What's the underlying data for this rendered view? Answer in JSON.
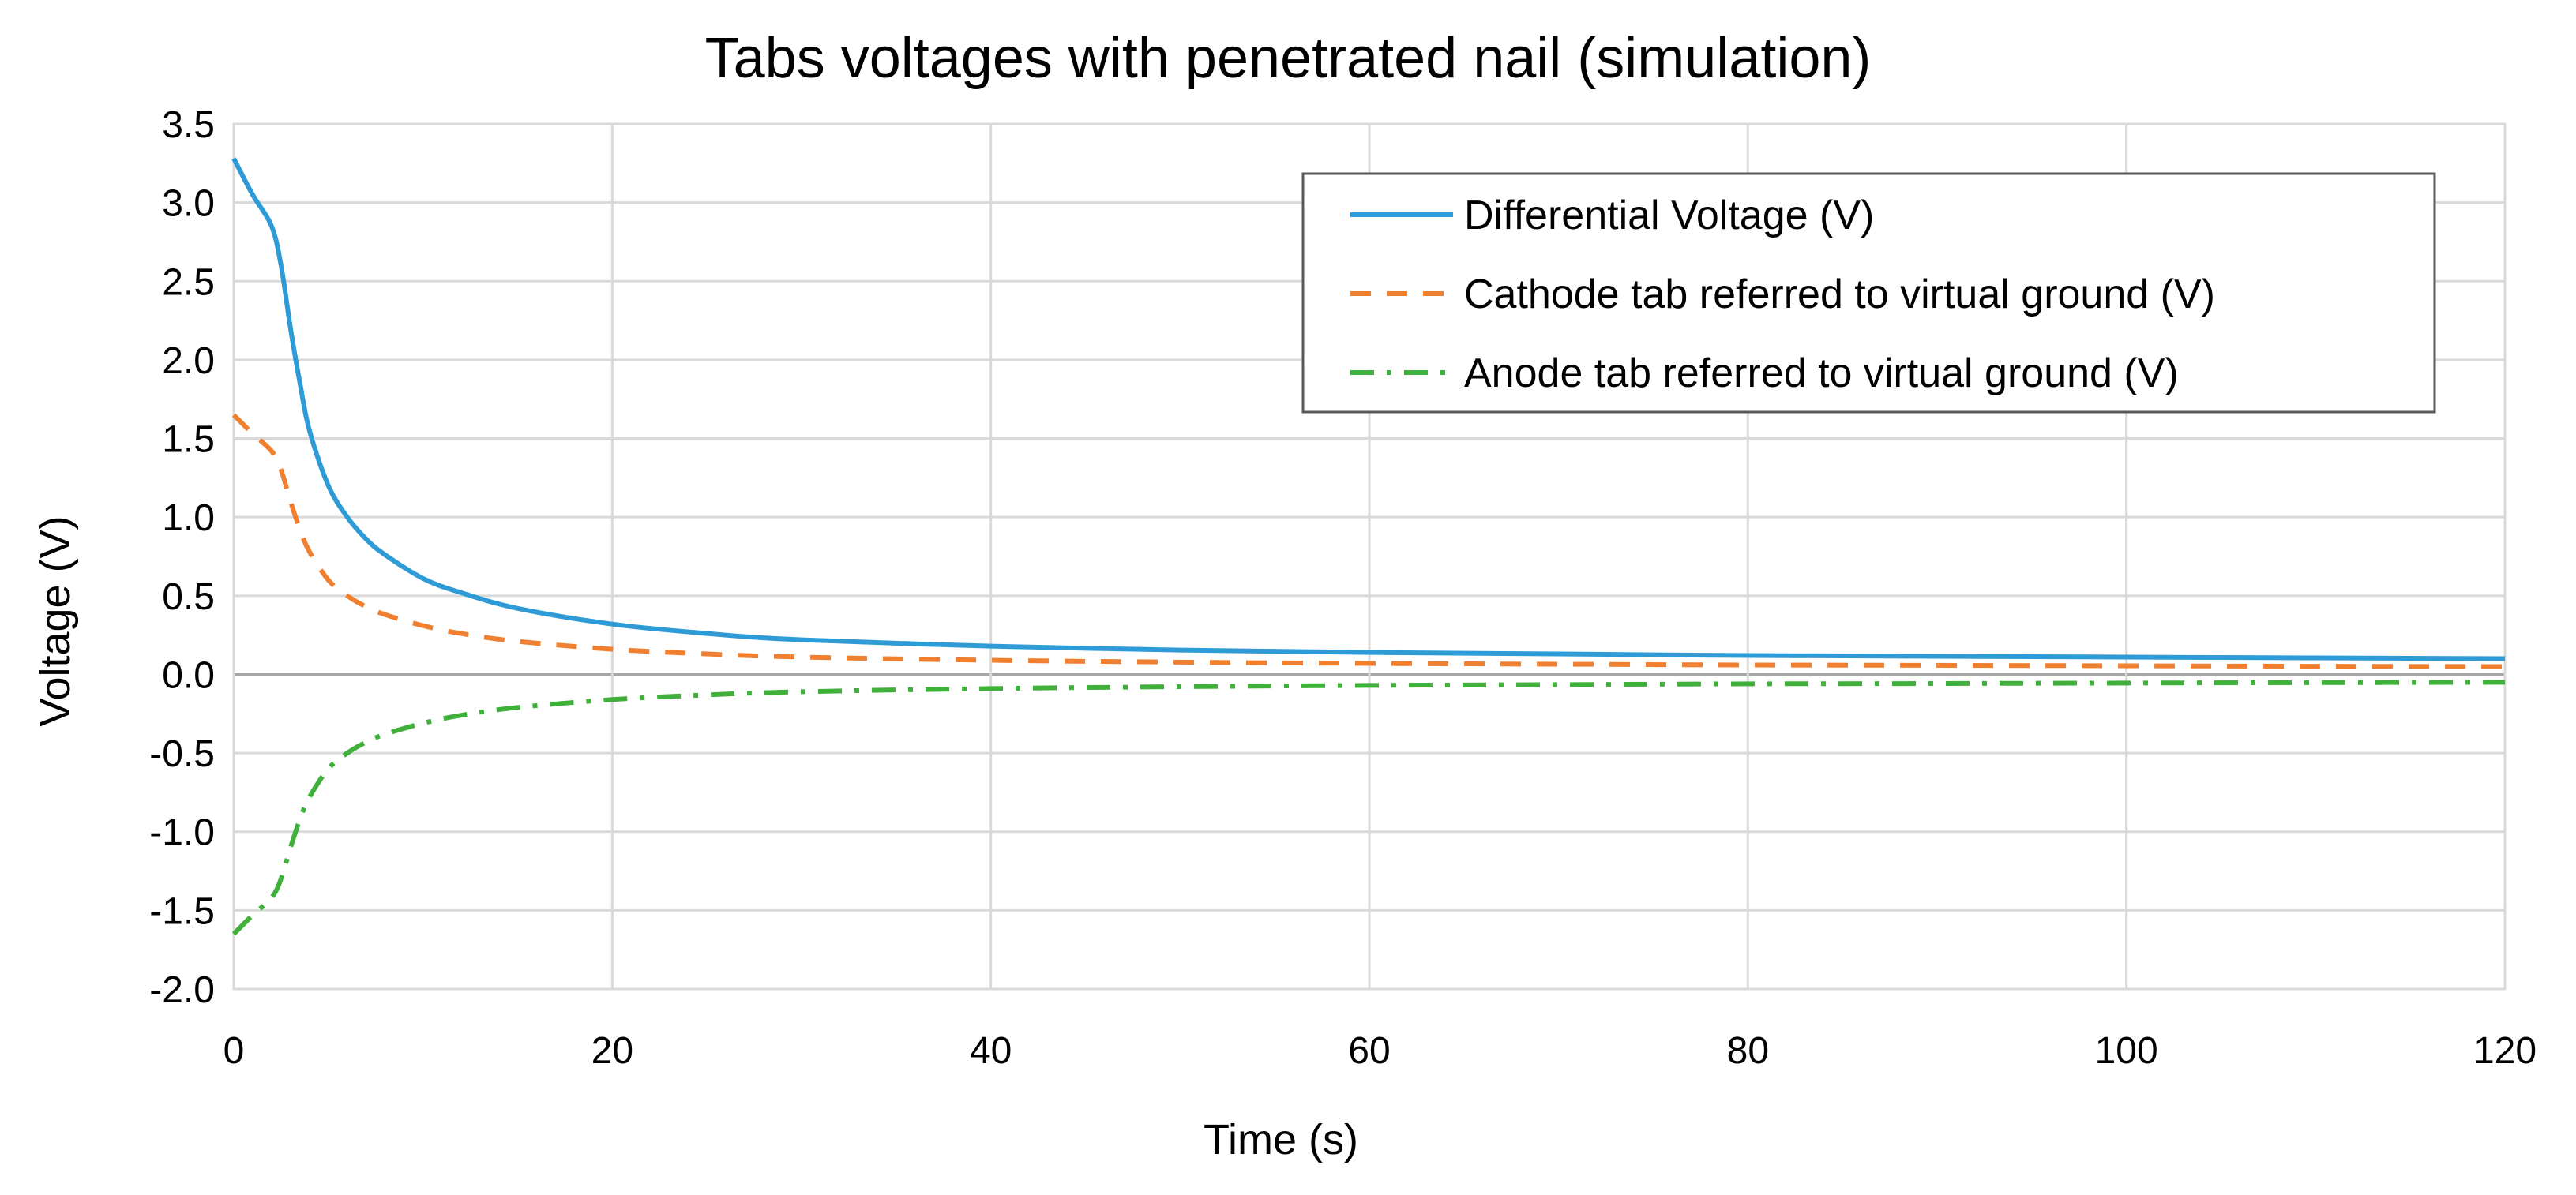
{
  "chart_data": {
    "type": "line",
    "title": "Tabs voltages with penetrated nail (simulation)",
    "xlabel": "Time (s)",
    "ylabel": "Voltage (V)",
    "xlim": [
      0,
      120
    ],
    "ylim": [
      -2.0,
      3.5
    ],
    "xticks": [
      0,
      20,
      40,
      60,
      80,
      100,
      120
    ],
    "yticks": [
      -2.0,
      -1.5,
      -1.0,
      -0.5,
      0.0,
      0.5,
      1.0,
      1.5,
      2.0,
      2.5,
      3.0,
      3.5
    ],
    "grid": true,
    "legend_position": "top-right",
    "series": [
      {
        "name": "Differential Voltage (V)",
        "color": "#2e9bd7",
        "dash": "solid",
        "x": [
          0,
          1,
          2,
          2.5,
          3,
          3.5,
          4,
          5,
          6,
          7,
          8,
          10,
          12,
          15,
          20,
          25,
          30,
          40,
          50,
          60,
          70,
          80,
          90,
          100,
          110,
          120
        ],
        "y": [
          3.28,
          3.05,
          2.85,
          2.6,
          2.2,
          1.85,
          1.55,
          1.2,
          1.0,
          0.86,
          0.76,
          0.61,
          0.52,
          0.42,
          0.32,
          0.26,
          0.22,
          0.18,
          0.155,
          0.14,
          0.13,
          0.12,
          0.115,
          0.11,
          0.105,
          0.1
        ]
      },
      {
        "name": "Cathode tab referred to virtual ground (V)",
        "color": "#f07f2f",
        "dash": "dashed",
        "x": [
          0,
          1,
          2,
          2.5,
          3,
          3.5,
          4,
          5,
          6,
          7,
          8,
          10,
          12,
          15,
          20,
          25,
          30,
          40,
          50,
          60,
          70,
          80,
          90,
          100,
          110,
          120
        ],
        "y": [
          1.65,
          1.53,
          1.42,
          1.3,
          1.1,
          0.92,
          0.78,
          0.6,
          0.5,
          0.43,
          0.38,
          0.31,
          0.26,
          0.21,
          0.16,
          0.13,
          0.11,
          0.09,
          0.078,
          0.07,
          0.065,
          0.06,
          0.058,
          0.055,
          0.052,
          0.05
        ]
      },
      {
        "name": "Anode tab referred to virtual ground (V)",
        "color": "#3fb13a",
        "dash": "dashdot",
        "x": [
          0,
          1,
          2,
          2.5,
          3,
          3.5,
          4,
          5,
          6,
          7,
          8,
          10,
          12,
          15,
          20,
          25,
          30,
          40,
          50,
          60,
          70,
          80,
          90,
          100,
          110,
          120
        ],
        "y": [
          -1.65,
          -1.53,
          -1.42,
          -1.3,
          -1.1,
          -0.92,
          -0.78,
          -0.6,
          -0.5,
          -0.43,
          -0.38,
          -0.31,
          -0.26,
          -0.21,
          -0.16,
          -0.13,
          -0.11,
          -0.09,
          -0.078,
          -0.07,
          -0.065,
          -0.06,
          -0.058,
          -0.055,
          -0.052,
          -0.05
        ]
      }
    ]
  }
}
